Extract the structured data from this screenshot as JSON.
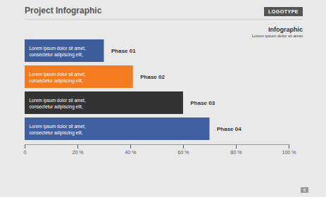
{
  "chart_data": {
    "type": "bar",
    "orientation": "horizontal",
    "title": "Project Infographic",
    "annotations": {
      "logotype": "LOGOTYPE",
      "heading": "Infographic",
      "subheading": "Lorem ipsum dolor sit amet",
      "page_number": "6"
    },
    "categories": [
      "Phase 01",
      "Phase 02",
      "Phase 03",
      "Phase 04"
    ],
    "values": [
      30,
      41,
      60,
      70
    ],
    "colors": [
      "#3d5d9b",
      "#f47b20",
      "#333333",
      "#3f5fa0"
    ],
    "bar_labels": [
      [
        "Lorem ipsum dolor sit amet,",
        "consectetur adipiscing elit,"
      ],
      [
        "Lorem ipsum dolor sit amet,",
        "consectetur adipiscing elit,"
      ],
      [
        "Lorem ipsum dolor sit amet,",
        "consectetur adipiscing elit,"
      ],
      [
        "Lorem ipsum dolor sit amet,",
        "consectetur adipiscing elit,"
      ]
    ],
    "xlim": [
      0,
      100
    ],
    "xticks": [
      0,
      {
        "value": 20,
        "label": "20 %"
      },
      {
        "value": 40,
        "label": "40 %"
      },
      {
        "value": 60,
        "label": "60 %"
      },
      {
        "value": 80,
        "label": "80 %"
      },
      {
        "value": 100,
        "label": "100 %"
      }
    ],
    "grid": false
  }
}
